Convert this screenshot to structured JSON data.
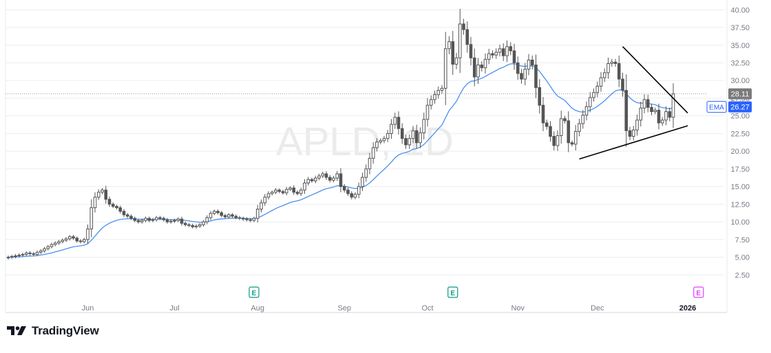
{
  "watermark": "APLD, 1D",
  "brand": {
    "name": "TradingView"
  },
  "colors": {
    "candle": "#555555",
    "ema": "#4a8ff0",
    "ema_badge": "#2962ff",
    "price_badge": "#7a7a7a",
    "grid": "#eceef2",
    "earnings_green": "#089981",
    "earnings_pink": "#e040fb",
    "trendline": "#000000"
  },
  "chart_data": {
    "type": "candlestick",
    "y_axis": {
      "ticks": [
        "2.50",
        "5.00",
        "7.50",
        "10.00",
        "12.50",
        "15.00",
        "17.50",
        "20.00",
        "22.50",
        "25.00",
        "27.50",
        "30.00",
        "32.50",
        "35.00",
        "37.50",
        "40.00"
      ],
      "range": [
        0,
        41
      ]
    },
    "x_axis": {
      "labels": [
        {
          "label": "Jun",
          "bar": 22
        },
        {
          "label": "Jul",
          "bar": 46
        },
        {
          "label": "Aug",
          "bar": 69
        },
        {
          "label": "Sep",
          "bar": 93
        },
        {
          "label": "Oct",
          "bar": 116
        },
        {
          "label": "Nov",
          "bar": 141
        },
        {
          "label": "Dec",
          "bar": 163
        },
        {
          "label": "2026",
          "bar": 188,
          "bold": true
        }
      ]
    },
    "last_price": {
      "value": 28.11,
      "label": "28.11"
    },
    "ema": {
      "label": "EMA",
      "value": 26.27,
      "value_label": "26.27"
    },
    "earnings_markers": [
      {
        "bar": 68,
        "label": "E",
        "color": "green"
      },
      {
        "bar": 123,
        "label": "E",
        "color": "green"
      },
      {
        "bar": 191,
        "label": "E",
        "color": "pink"
      }
    ],
    "trendlines": [
      {
        "from": {
          "bar": 170,
          "price": 34.8
        },
        "to": {
          "bar": 188,
          "price": 25.4
        }
      },
      {
        "from": {
          "bar": 158,
          "price": 18.9
        },
        "to": {
          "bar": 188,
          "price": 23.6
        }
      }
    ],
    "close": [
      5.0,
      5.1,
      5.2,
      5.3,
      5.4,
      5.6,
      5.5,
      5.4,
      5.7,
      5.9,
      6.2,
      6.5,
      6.8,
      7.0,
      7.2,
      7.4,
      7.6,
      7.9,
      7.7,
      7.3,
      7.2,
      7.5,
      9.0,
      12.0,
      13.5,
      14.2,
      14.5,
      13.2,
      12.5,
      12.2,
      12.0,
      11.5,
      11.0,
      10.8,
      10.5,
      10.2,
      10.0,
      10.2,
      10.5,
      10.2,
      10.3,
      10.6,
      10.5,
      10.3,
      10.0,
      10.1,
      10.2,
      10.4,
      9.8,
      9.6,
      9.5,
      9.3,
      9.4,
      9.6,
      10.0,
      10.6,
      11.2,
      11.5,
      11.3,
      10.9,
      10.7,
      11.0,
      10.8,
      10.6,
      10.5,
      10.4,
      10.3,
      10.2,
      10.5,
      11.8,
      12.7,
      13.5,
      14.0,
      14.2,
      14.5,
      14.3,
      14.1,
      14.6,
      14.8,
      14.2,
      14.0,
      14.5,
      15.5,
      16.0,
      15.8,
      16.2,
      16.5,
      16.8,
      16.3,
      15.9,
      16.2,
      16.8,
      15.0,
      14.5,
      14.0,
      13.5,
      13.9,
      15.0,
      16.3,
      17.5,
      19.0,
      20.5,
      21.3,
      21.5,
      21.8,
      22.5,
      23.8,
      24.8,
      23.2,
      21.8,
      20.9,
      21.8,
      22.9,
      21.2,
      22.6,
      24.5,
      26.5,
      27.3,
      28.0,
      28.6,
      28.9,
      34.5,
      35.5,
      32.3,
      33.2,
      38.0,
      37.2,
      35.1,
      33.2,
      30.5,
      32.2,
      31.8,
      33.0,
      33.8,
      33.6,
      34.0,
      34.5,
      33.5,
      34.8,
      34.2,
      32.5,
      31.0,
      30.2,
      31.6,
      32.9,
      32.2,
      29.0,
      26.5,
      24.0,
      23.5,
      22.1,
      20.8,
      22.2,
      24.6,
      24.3,
      21.2,
      21.0,
      22.8,
      23.9,
      25.1,
      26.3,
      27.6,
      28.3,
      29.2,
      30.4,
      31.1,
      32.4,
      32.6,
      32.4,
      30.2,
      28.6,
      22.9,
      22.1,
      23.0,
      24.4,
      26.1,
      27.3,
      26.2,
      25.6,
      25.8,
      24.0,
      24.4,
      25.6,
      24.8,
      28.11
    ]
  }
}
